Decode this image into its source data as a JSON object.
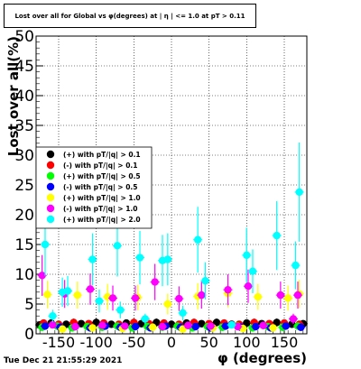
{
  "chart_data": {
    "type": "scatter",
    "title": "Lost over all for Global vs φ(degrees) at | η | <= 1.0 at pT > 0.11",
    "xlabel": "φ (degrees)",
    "ylabel": "Lost over all(%)",
    "xlim": [
      -180,
      180
    ],
    "ylim": [
      0,
      50
    ],
    "xticks": [
      -150,
      -100,
      -50,
      0,
      50,
      100,
      150
    ],
    "yticks": [
      0,
      5,
      10,
      15,
      20,
      25,
      30,
      35,
      40,
      45,
      50
    ],
    "grid": true,
    "legend_position": "left-middle",
    "series": [
      {
        "name": "(+) with pT/|q| > 0.1",
        "color": "#000000",
        "points": [
          [
            -175,
            1.5
          ],
          [
            -160,
            1.8
          ],
          [
            -140,
            1.6
          ],
          [
            -120,
            1.7
          ],
          [
            -100,
            1.9
          ],
          [
            -80,
            1.6
          ],
          [
            -60,
            1.8
          ],
          [
            -40,
            1.7
          ],
          [
            -20,
            1.9
          ],
          [
            0,
            1.6
          ],
          [
            20,
            1.8
          ],
          [
            40,
            1.7
          ],
          [
            60,
            1.9
          ],
          [
            80,
            1.6
          ],
          [
            100,
            1.8
          ],
          [
            120,
            1.7
          ],
          [
            140,
            1.9
          ],
          [
            160,
            1.6
          ],
          [
            175,
            1.7
          ]
        ]
      },
      {
        "name": "(-) with pT/|q| > 0.1",
        "color": "#ff0000",
        "points": [
          [
            -170,
            1.8
          ],
          [
            -150,
            1.6
          ],
          [
            -130,
            1.9
          ],
          [
            -110,
            1.7
          ],
          [
            -90,
            1.8
          ],
          [
            -70,
            1.6
          ],
          [
            -50,
            1.9
          ],
          [
            -30,
            1.7
          ],
          [
            -10,
            1.8
          ],
          [
            10,
            1.6
          ],
          [
            30,
            1.9
          ],
          [
            50,
            1.7
          ],
          [
            70,
            1.8
          ],
          [
            90,
            1.6
          ],
          [
            110,
            1.9
          ],
          [
            130,
            1.7
          ],
          [
            150,
            1.8
          ],
          [
            170,
            1.6
          ]
        ]
      },
      {
        "name": "(+) with pT/|q| > 0.5",
        "color": "#00ff00",
        "points": [
          [
            -172,
            1.1
          ],
          [
            -152,
            1.3
          ],
          [
            -132,
            1.0
          ],
          [
            -112,
            1.2
          ],
          [
            -92,
            1.1
          ],
          [
            -72,
            1.3
          ],
          [
            -52,
            1.0
          ],
          [
            -32,
            1.2
          ],
          [
            -12,
            1.1
          ],
          [
            8,
            1.3
          ],
          [
            28,
            1.0
          ],
          [
            48,
            1.2
          ],
          [
            68,
            1.1
          ],
          [
            88,
            1.3
          ],
          [
            108,
            1.0
          ],
          [
            128,
            1.2
          ],
          [
            148,
            1.1
          ],
          [
            168,
            1.3
          ]
        ]
      },
      {
        "name": "(-) with pT/|q| > 0.5",
        "color": "#0000ff",
        "points": [
          [
            -168,
            1.3
          ],
          [
            -148,
            1.1
          ],
          [
            -128,
            1.2
          ],
          [
            -108,
            1.0
          ],
          [
            -88,
            1.3
          ],
          [
            -68,
            1.1
          ],
          [
            -48,
            1.2
          ],
          [
            -28,
            1.0
          ],
          [
            -8,
            1.3
          ],
          [
            12,
            1.1
          ],
          [
            32,
            1.2
          ],
          [
            52,
            1.0
          ],
          [
            72,
            1.3
          ],
          [
            92,
            1.1
          ],
          [
            112,
            1.2
          ],
          [
            132,
            1.0
          ],
          [
            152,
            1.3
          ],
          [
            172,
            1.1
          ]
        ]
      },
      {
        "name": "(+) with pT/|q| > 1.0",
        "color": "#ffff00",
        "points": [
          [
            -165,
            6.6
          ],
          [
            -145,
            0.8
          ],
          [
            -125,
            6.5
          ],
          [
            -105,
            1.0
          ],
          [
            -85,
            6.2
          ],
          [
            -65,
            0.9
          ],
          [
            -45,
            6.1
          ],
          [
            -25,
            1.1
          ],
          [
            -5,
            5.0
          ],
          [
            15,
            0.8
          ],
          [
            35,
            6.3
          ],
          [
            55,
            1.0
          ],
          [
            75,
            6.8
          ],
          [
            95,
            0.9
          ],
          [
            115,
            6.2
          ],
          [
            135,
            1.0
          ],
          [
            155,
            6.0
          ],
          [
            170,
            6.7
          ]
        ]
      },
      {
        "name": "(-) with pT/|q| > 1.0",
        "color": "#ff00ff",
        "points": [
          [
            -172,
            9.8
          ],
          [
            -158,
            1.5
          ],
          [
            -142,
            6.7
          ],
          [
            -128,
            1.2
          ],
          [
            -108,
            7.5
          ],
          [
            -92,
            1.4
          ],
          [
            -78,
            6.0
          ],
          [
            -62,
            1.3
          ],
          [
            -48,
            6.0
          ],
          [
            -22,
            8.7
          ],
          [
            -12,
            1.2
          ],
          [
            10,
            5.9
          ],
          [
            22,
            1.4
          ],
          [
            40,
            6.5
          ],
          [
            52,
            1.3
          ],
          [
            75,
            7.4
          ],
          [
            88,
            1.2
          ],
          [
            102,
            8.0
          ],
          [
            122,
            1.4
          ],
          [
            145,
            6.5
          ],
          [
            162,
            2.5
          ],
          [
            168,
            6.5
          ]
        ]
      },
      {
        "name": "(+) with pT/|q| > 2.0",
        "color": "#00ffff",
        "points": [
          [
            -168,
            15.0
          ],
          [
            -158,
            3.0
          ],
          [
            -145,
            7.0
          ],
          [
            -138,
            7.2
          ],
          [
            -105,
            12.5
          ],
          [
            -96,
            5.5
          ],
          [
            -72,
            14.8
          ],
          [
            -68,
            4.0
          ],
          [
            -42,
            12.8
          ],
          [
            -35,
            2.5
          ],
          [
            -12,
            12.3
          ],
          [
            -5,
            12.5
          ],
          [
            15,
            3.5
          ],
          [
            35,
            15.8
          ],
          [
            45,
            8.9
          ],
          [
            80,
            1.5
          ],
          [
            100,
            13.2
          ],
          [
            108,
            10.5
          ],
          [
            140,
            16.5
          ],
          [
            165,
            11.5
          ],
          [
            170,
            23.8
          ]
        ]
      }
    ]
  },
  "footer": {
    "timestamp": "Tue Dec 21 21:55:29 2021"
  }
}
